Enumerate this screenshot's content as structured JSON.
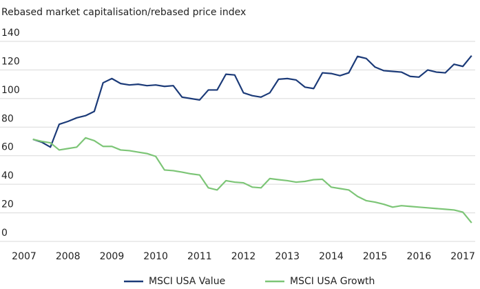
{
  "chart_data": {
    "type": "line",
    "title": "Rebased market capitalisation/rebased price index",
    "x": [
      2007.2,
      2007.4,
      2007.6,
      2007.8,
      2008.0,
      2008.2,
      2008.4,
      2008.6,
      2008.8,
      2009.0,
      2009.2,
      2009.4,
      2009.6,
      2009.8,
      2010.0,
      2010.2,
      2010.4,
      2010.6,
      2010.8,
      2011.0,
      2011.2,
      2011.4,
      2011.6,
      2011.8,
      2012.0,
      2012.2,
      2012.4,
      2012.6,
      2012.8,
      2013.0,
      2013.2,
      2013.4,
      2013.6,
      2013.8,
      2014.0,
      2014.2,
      2014.4,
      2014.6,
      2014.8,
      2015.0,
      2015.2,
      2015.4,
      2015.6,
      2015.8,
      2016.0,
      2016.2,
      2016.4,
      2016.6,
      2016.8,
      2017.0,
      2017.2
    ],
    "series": [
      {
        "name": "MSCI USA Value",
        "color": "#1b3a78",
        "values": [
          71.5,
          69.5,
          66,
          82,
          84,
          86.5,
          88,
          91,
          111,
          114,
          110.5,
          109.5,
          110,
          109,
          109.5,
          108.5,
          109,
          101,
          100,
          99,
          106,
          106,
          117,
          116.5,
          104,
          102,
          101,
          104,
          113.5,
          114,
          113,
          108,
          107,
          118,
          117.5,
          116,
          118,
          129.5,
          128,
          122,
          119.5,
          119,
          118.5,
          115.5,
          115,
          120,
          118.5,
          118,
          124,
          122.5,
          130
        ]
      },
      {
        "name": "MSCI USA Growth",
        "color": "#7cc576",
        "values": [
          71.5,
          70,
          69,
          64,
          65,
          66,
          72.5,
          70.5,
          66.5,
          66.5,
          64,
          63.5,
          62.5,
          61.5,
          59.5,
          50,
          49.5,
          48.5,
          47.3,
          46.5,
          37.5,
          36,
          42.5,
          41.5,
          41,
          38,
          37.5,
          44,
          43.2,
          42.5,
          41.5,
          42,
          43.2,
          43.5,
          38,
          37,
          36,
          31.5,
          28.5,
          27.5,
          26,
          24,
          25,
          24.5,
          24,
          23.5,
          23,
          22.5,
          22,
          20.5,
          13
        ]
      }
    ],
    "xlim": [
      2007,
      2017.25
    ],
    "xticks": [
      2007,
      2008,
      2009,
      2010,
      2011,
      2012,
      2013,
      2014,
      2015,
      2016,
      2017
    ],
    "ylim": [
      0,
      140
    ],
    "yticks": [
      0,
      20,
      40,
      60,
      80,
      100,
      120,
      140
    ],
    "grid": true,
    "legend": "bottom"
  }
}
